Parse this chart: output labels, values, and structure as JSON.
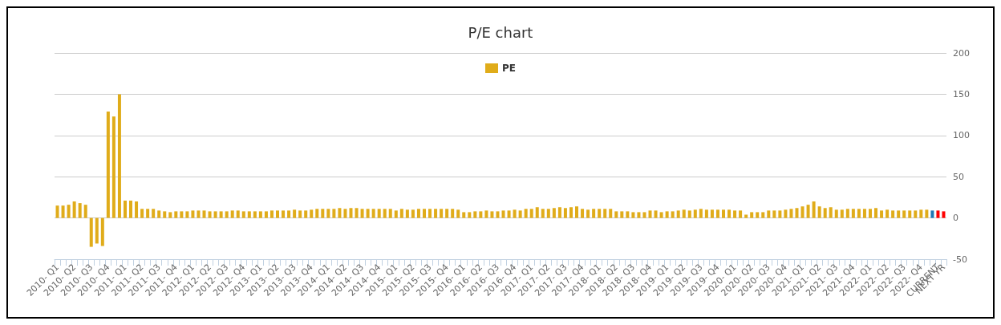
{
  "chart_data": {
    "type": "bar",
    "title": "P/E chart",
    "categories": [
      "2010- Q1",
      null,
      null,
      "2010- Q2",
      null,
      null,
      "2010- Q3",
      null,
      null,
      "2010- Q4",
      null,
      null,
      "2011- Q1",
      null,
      null,
      "2011- Q2",
      null,
      null,
      "2011- Q3",
      null,
      null,
      "2011- Q4",
      null,
      null,
      "2012- Q1",
      null,
      null,
      "2012- Q2",
      null,
      null,
      "2012- Q3",
      null,
      null,
      "2012- Q4",
      null,
      null,
      "2013- Q1",
      null,
      null,
      "2013- Q2",
      null,
      null,
      "2013- Q3",
      null,
      null,
      "2013- Q4",
      null,
      null,
      "2014- Q1",
      null,
      null,
      "2014- Q2",
      null,
      null,
      "2014- Q3",
      null,
      null,
      "2014- Q4",
      null,
      null,
      "2015- Q1",
      null,
      null,
      "2015- Q2",
      null,
      null,
      "2015- Q3",
      null,
      null,
      "2015- Q4",
      null,
      null,
      "2016- Q1",
      null,
      null,
      "2016- Q2",
      null,
      null,
      "2016- Q3",
      null,
      null,
      "2016- Q4",
      null,
      null,
      "2017- Q1",
      null,
      null,
      "2017- Q2",
      null,
      null,
      "2017- Q3",
      null,
      null,
      "2017- Q4",
      null,
      null,
      "2018- Q1",
      null,
      null,
      "2018- Q2",
      null,
      null,
      "2018- Q3",
      null,
      null,
      "2018- Q4",
      null,
      null,
      "2019- Q1",
      null,
      null,
      "2019- Q2",
      null,
      null,
      "2019- Q3",
      null,
      null,
      "2019- Q4",
      null,
      null,
      "2020- Q1",
      null,
      null,
      "2020- Q2",
      null,
      null,
      "2020- Q3",
      null,
      null,
      "2020- Q4",
      null,
      null,
      "2021- Q1",
      null,
      null,
      "2021- Q2",
      null,
      null,
      "2021- Q3",
      null,
      null,
      "2021- Q4",
      null,
      null,
      "2022- Q1",
      null,
      null,
      "2022- Q2",
      null,
      null,
      "2022- Q3",
      null,
      null,
      "2022- Q4",
      null,
      null,
      "CURRENT",
      "NEXT YR"
    ],
    "series": [
      {
        "name": "PE",
        "color": "#e0ac1a",
        "values": [
          15,
          15,
          16,
          20,
          18,
          16,
          -35,
          -31,
          -34,
          129,
          123,
          150,
          21,
          21,
          20,
          11,
          11,
          11,
          9,
          8,
          7,
          8,
          8,
          8,
          9,
          9,
          9,
          8,
          8,
          8,
          8,
          9,
          9,
          8,
          8,
          8,
          8,
          8,
          9,
          9,
          9,
          9,
          10,
          9,
          9,
          10,
          11,
          11,
          11,
          11,
          12,
          11,
          12,
          12,
          11,
          11,
          11,
          11,
          11,
          11,
          9,
          11,
          10,
          10,
          11,
          11,
          11,
          11,
          11,
          11,
          11,
          10,
          7,
          7,
          8,
          8,
          9,
          8,
          8,
          9,
          9,
          10,
          9,
          11,
          11,
          13,
          11,
          11,
          12,
          13,
          12,
          13,
          14,
          11,
          10,
          11,
          11,
          11,
          11,
          8,
          8,
          8,
          7,
          7,
          7,
          9,
          9,
          7,
          8,
          8,
          9,
          10,
          9,
          10,
          11,
          10,
          10,
          10,
          10,
          10,
          9,
          9,
          4,
          7,
          7,
          7,
          9,
          9,
          9,
          10,
          11,
          12,
          14,
          16,
          20,
          14,
          12,
          13,
          10,
          10,
          11,
          11,
          11,
          11,
          11,
          12,
          9,
          10,
          9,
          9,
          9,
          9,
          9,
          10,
          10,
          9,
          9,
          8
        ],
        "colors": [
          "#e0ac1a",
          "#e0ac1a",
          "#e0ac1a",
          "#e0ac1a",
          "#e0ac1a",
          "#e0ac1a",
          "#e0ac1a",
          "#e0ac1a",
          "#e0ac1a",
          "#e0ac1a",
          "#e0ac1a",
          "#e0ac1a",
          "#e0ac1a",
          "#e0ac1a",
          "#e0ac1a",
          "#e0ac1a",
          "#e0ac1a",
          "#e0ac1a",
          "#e0ac1a",
          "#e0ac1a",
          "#e0ac1a",
          "#e0ac1a",
          "#e0ac1a",
          "#e0ac1a",
          "#e0ac1a",
          "#e0ac1a",
          "#e0ac1a",
          "#e0ac1a",
          "#e0ac1a",
          "#e0ac1a",
          "#e0ac1a",
          "#e0ac1a",
          "#e0ac1a",
          "#e0ac1a",
          "#e0ac1a",
          "#e0ac1a",
          "#e0ac1a",
          "#e0ac1a",
          "#e0ac1a",
          "#e0ac1a",
          "#e0ac1a",
          "#e0ac1a",
          "#e0ac1a",
          "#e0ac1a",
          "#e0ac1a",
          "#e0ac1a",
          "#e0ac1a",
          "#e0ac1a",
          "#e0ac1a",
          "#e0ac1a",
          "#e0ac1a",
          "#e0ac1a",
          "#e0ac1a",
          "#e0ac1a",
          "#e0ac1a",
          "#e0ac1a",
          "#e0ac1a",
          "#e0ac1a",
          "#e0ac1a",
          "#e0ac1a",
          "#e0ac1a",
          "#e0ac1a",
          "#e0ac1a",
          "#e0ac1a",
          "#e0ac1a",
          "#e0ac1a",
          "#e0ac1a",
          "#e0ac1a",
          "#e0ac1a",
          "#e0ac1a",
          "#e0ac1a",
          "#e0ac1a",
          "#e0ac1a",
          "#e0ac1a",
          "#e0ac1a",
          "#e0ac1a",
          "#e0ac1a",
          "#e0ac1a",
          "#e0ac1a",
          "#e0ac1a",
          "#e0ac1a",
          "#e0ac1a",
          "#e0ac1a",
          "#e0ac1a",
          "#e0ac1a",
          "#e0ac1a",
          "#e0ac1a",
          "#e0ac1a",
          "#e0ac1a",
          "#e0ac1a",
          "#e0ac1a",
          "#e0ac1a",
          "#e0ac1a",
          "#e0ac1a",
          "#e0ac1a",
          "#e0ac1a",
          "#e0ac1a",
          "#e0ac1a",
          "#e0ac1a",
          "#e0ac1a",
          "#e0ac1a",
          "#e0ac1a",
          "#e0ac1a",
          "#e0ac1a",
          "#e0ac1a",
          "#e0ac1a",
          "#e0ac1a",
          "#e0ac1a",
          "#e0ac1a",
          "#e0ac1a",
          "#e0ac1a",
          "#e0ac1a",
          "#e0ac1a",
          "#e0ac1a",
          "#e0ac1a",
          "#e0ac1a",
          "#e0ac1a",
          "#e0ac1a",
          "#e0ac1a",
          "#e0ac1a",
          "#e0ac1a",
          "#e0ac1a",
          "#e0ac1a",
          "#e0ac1a",
          "#e0ac1a",
          "#e0ac1a",
          "#e0ac1a",
          "#e0ac1a",
          "#e0ac1a",
          "#e0ac1a",
          "#e0ac1a",
          "#e0ac1a",
          "#e0ac1a",
          "#e0ac1a",
          "#e0ac1a",
          "#e0ac1a",
          "#e0ac1a",
          "#e0ac1a",
          "#e0ac1a",
          "#e0ac1a",
          "#e0ac1a",
          "#e0ac1a",
          "#e0ac1a",
          "#e0ac1a",
          "#e0ac1a",
          "#e0ac1a",
          "#e0ac1a",
          "#e0ac1a",
          "#e0ac1a",
          "#e0ac1a",
          "#e0ac1a",
          "#e0ac1a",
          "#e0ac1a",
          "#e0ac1a",
          "#e0ac1a",
          "#1f77b4",
          "#ff0000",
          "#ff0000"
        ]
      }
    ],
    "ylim": [
      -50,
      200
    ],
    "yticks": [
      -50,
      0,
      50,
      100,
      150,
      200
    ],
    "grid": "y",
    "legend": "top"
  }
}
